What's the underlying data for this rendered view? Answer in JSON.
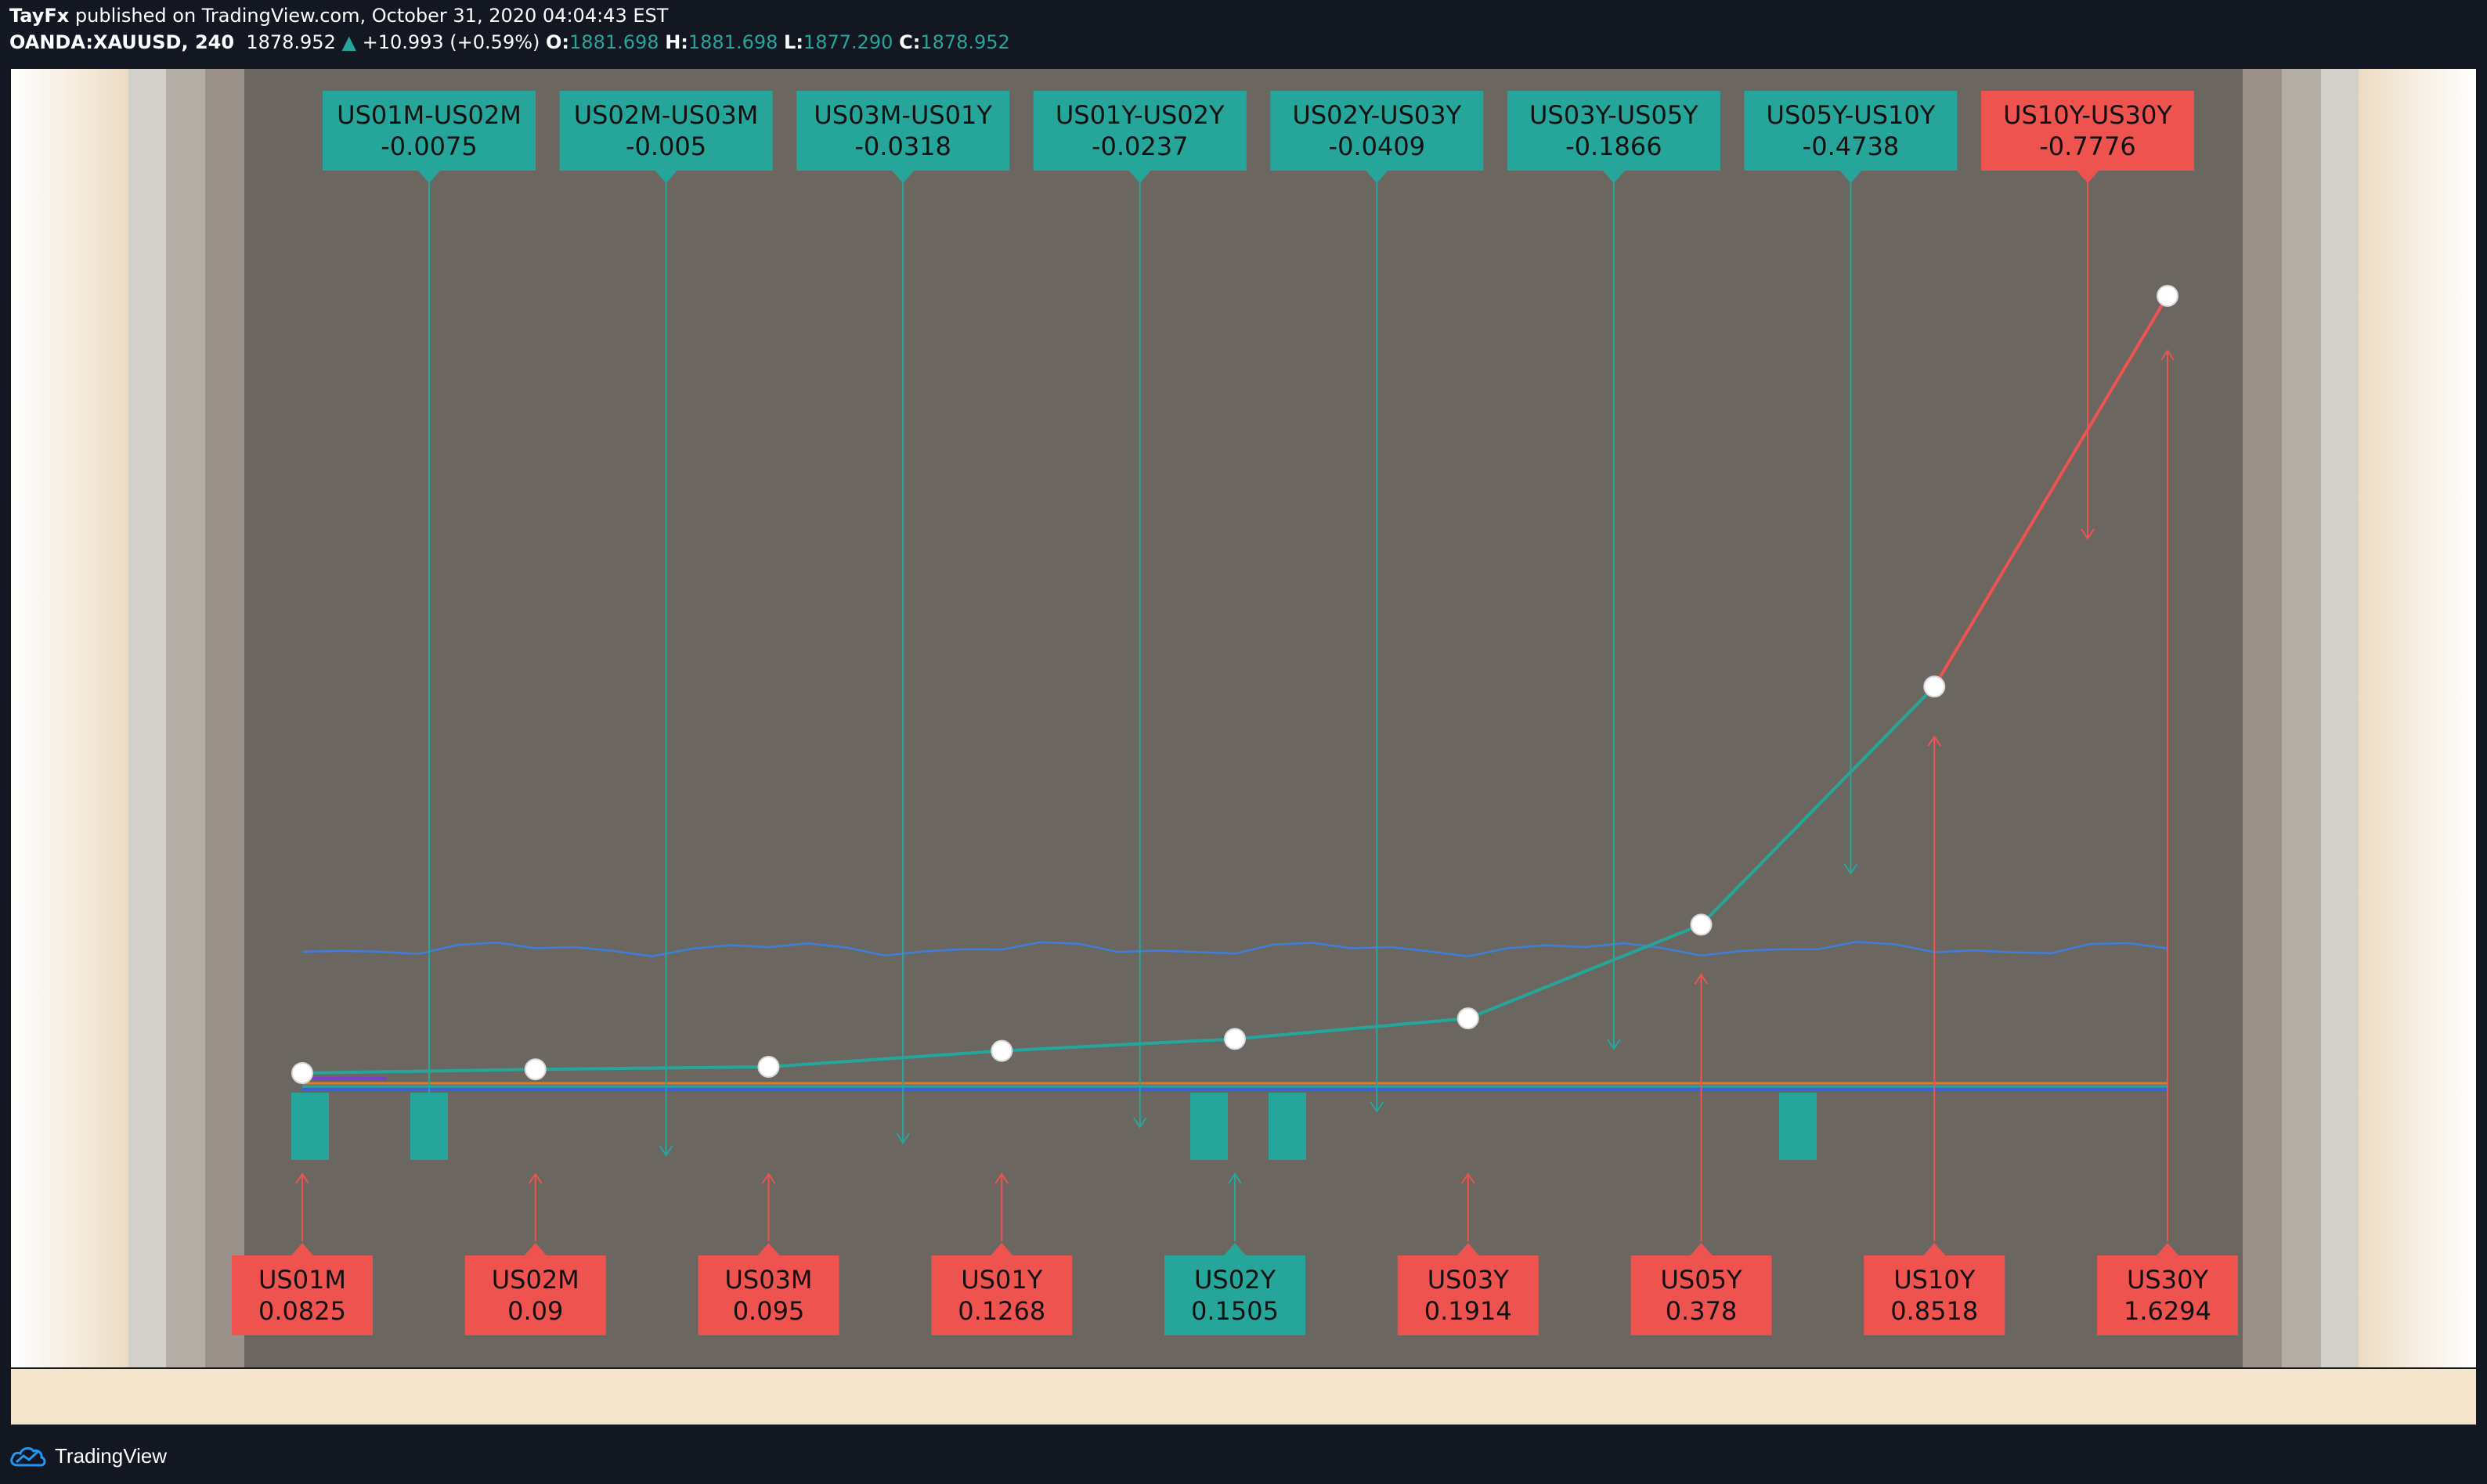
{
  "header": {
    "author": "TayFx",
    "published": "published on TradingView.com, October 31, 2020 04:04:43 EST",
    "symbol": "OANDA:XAUUSD, 240",
    "price": "1878.952",
    "change": "+10.993 (+0.59%)",
    "o_label": "O:",
    "o_value": "1881.698",
    "h_label": "H:",
    "h_value": "1881.698",
    "l_label": "L:",
    "l_value": "1877.290",
    "c_label": "C:",
    "c_value": "1878.952"
  },
  "footer": {
    "brand": "TradingView"
  },
  "colors": {
    "teal": "#26a69a",
    "red": "#ef5350",
    "blue": "#2962ff"
  },
  "chart_data": {
    "type": "line",
    "title": "",
    "xlabel": "",
    "ylabel": "",
    "categories": [
      "US01M",
      "US02M",
      "US03M",
      "US01Y",
      "US02Y",
      "US03Y",
      "US05Y",
      "US10Y",
      "US30Y"
    ],
    "values": [
      0.0825,
      0.09,
      0.095,
      0.1268,
      0.1505,
      0.1914,
      0.378,
      0.8518,
      1.6294
    ],
    "value_labels": [
      "0.0825",
      "0.09",
      "0.095",
      "0.1268",
      "0.1505",
      "0.1914",
      "0.378",
      "0.8518",
      "1.6294"
    ],
    "point_colors": [
      "red",
      "red",
      "red",
      "red",
      "teal",
      "red",
      "red",
      "red",
      "red"
    ],
    "spreads": [
      {
        "name": "US01M-US02M",
        "value": "-0.0075",
        "color": "teal"
      },
      {
        "name": "US02M-US03M",
        "value": "-0.005",
        "color": "teal"
      },
      {
        "name": "US03M-US01Y",
        "value": "-0.0318",
        "color": "teal"
      },
      {
        "name": "US01Y-US02Y",
        "value": "-0.0237",
        "color": "teal"
      },
      {
        "name": "US02Y-US03Y",
        "value": "-0.0409",
        "color": "teal"
      },
      {
        "name": "US03Y-US05Y",
        "value": "-0.1866",
        "color": "teal"
      },
      {
        "name": "US05Y-US10Y",
        "value": "-0.4738",
        "color": "teal"
      },
      {
        "name": "US10Y-US30Y",
        "value": "-0.7776",
        "color": "red"
      }
    ],
    "ylim": [
      0,
      1.8
    ],
    "grid": false,
    "legend": "none"
  }
}
